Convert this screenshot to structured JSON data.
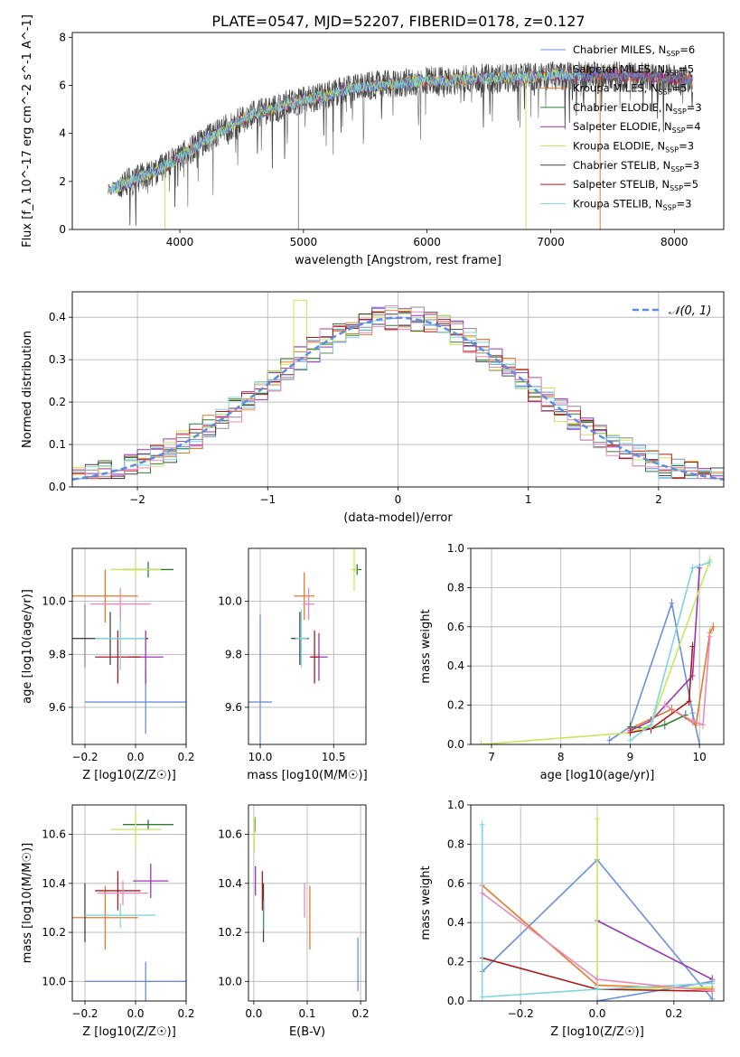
{
  "figure_title": "PLATE=0547, MJD=52207, FIBERID=0178, z=0.127",
  "palette": {
    "Chabrier MILES": "#6a8fdc",
    "Salpeter MILES": "#8a8a8a",
    "Kroupa MILES": "#e8782a",
    "Chabrier ELODIE": "#2e7d32",
    "Salpeter ELODIE": "#9b35b5",
    "Kroupa ELODIE": "#c8e65a",
    "Chabrier STELIB": "#444444",
    "Salpeter STELIB": "#b01818",
    "Kroupa STELIB": "#7fd6dc",
    "normal": "#5b8ee0",
    "pink": "#e88ab8"
  },
  "chart_data": [
    {
      "id": "spectrum",
      "type": "line",
      "xlabel": "wavelength [Angstrom, rest frame]",
      "ylabel": "Flux [f_λ 10^-17 erg cm^-2 s^-1 A^-1]",
      "xlim": [
        3130,
        8400
      ],
      "ylim": [
        0,
        8.2
      ],
      "xticks": [
        4000,
        5000,
        6000,
        7000,
        8000
      ],
      "yticks": [
        0,
        2,
        4,
        6,
        8
      ],
      "legend_position": "top-right",
      "legend": [
        {
          "model": "Chabrier MILES",
          "n": "6"
        },
        {
          "model": "Salpeter MILES",
          "n": "5"
        },
        {
          "model": "Kroupa MILES",
          "n": "5"
        },
        {
          "model": "Chabrier ELODIE",
          "n": "3"
        },
        {
          "model": "Salpeter ELODIE",
          "n": "4"
        },
        {
          "model": "Kroupa ELODIE",
          "n": "3"
        },
        {
          "model": "Chabrier STELIB",
          "n": "3"
        },
        {
          "model": "Salpeter STELIB",
          "n": "5"
        },
        {
          "model": "Kroupa STELIB",
          "n": "3"
        }
      ],
      "continuum": {
        "x": [
          3400,
          3600,
          3800,
          4000,
          4200,
          4400,
          4600,
          4800,
          5000,
          5200,
          5400,
          5600,
          5800,
          6000,
          6200,
          6400,
          6600,
          6800,
          7000,
          7200,
          7400,
          7600,
          7800,
          8000,
          8150
        ],
        "y": [
          1.6,
          2.0,
          2.4,
          3.0,
          3.7,
          4.3,
          4.8,
          5.1,
          5.4,
          5.6,
          5.9,
          6.0,
          6.1,
          6.2,
          6.2,
          6.3,
          6.3,
          6.35,
          6.4,
          6.4,
          6.45,
          6.4,
          6.35,
          6.3,
          6.2
        ]
      }
    },
    {
      "id": "residuals",
      "type": "line",
      "xlabel": "(data-model)/error",
      "ylabel": "Normed distribution",
      "xlim": [
        -2.5,
        2.5
      ],
      "ylim": [
        0,
        0.46
      ],
      "xticks": [
        -2,
        -1,
        0,
        1,
        2
      ],
      "yticks": [
        0.0,
        0.1,
        0.2,
        0.3,
        0.4
      ],
      "grid": true,
      "legend_label": "𝒩(0, 1)",
      "legend_position": "top-right",
      "normal_curve": {
        "mean": 0,
        "sigma": 1
      }
    },
    {
      "id": "z-age",
      "type": "scatter",
      "xlabel": "Z [log10(Z/Z☉)]",
      "ylabel": "age [log10(age/yr)]",
      "xlim": [
        -0.25,
        0.2
      ],
      "ylim": [
        9.46,
        10.2
      ],
      "xticks": [
        -0.2,
        0.0,
        0.2
      ],
      "yticks": [
        9.6,
        9.8,
        10.0
      ],
      "grid": true,
      "points": [
        {
          "model": "Chabrier MILES",
          "x": 0.04,
          "y": 9.62,
          "xerr": 0.24,
          "yerr": 0.12
        },
        {
          "model": "Salpeter MILES",
          "x": -0.2,
          "y": 9.87,
          "xerr": 0.0,
          "yerr": 0.12
        },
        {
          "model": "Kroupa MILES",
          "x": -0.12,
          "y": 10.02,
          "xerr": 0.13,
          "yerr": 0.1
        },
        {
          "model": "Chabrier ELODIE",
          "x": 0.05,
          "y": 10.12,
          "xerr": 0.1,
          "yerr": 0.03
        },
        {
          "model": "Salpeter ELODIE",
          "x": 0.04,
          "y": 9.79,
          "xerr": 0.07,
          "yerr": 0.1
        },
        {
          "model": "Kroupa ELODIE",
          "x": 0.0,
          "y": 10.12,
          "xerr": 0.1,
          "yerr": 0.03
        },
        {
          "model": "Chabrier STELIB",
          "x": -0.1,
          "y": 9.86,
          "xerr": 0.15,
          "yerr": 0.1
        },
        {
          "model": "Salpeter STELIB",
          "x": -0.07,
          "y": 9.79,
          "xerr": 0.09,
          "yerr": 0.1
        },
        {
          "model": "Kroupa STELIB",
          "x": -0.06,
          "y": 9.86,
          "xerr": 0.1,
          "yerr": 0.12
        },
        {
          "model": "pink",
          "x": -0.06,
          "y": 9.99,
          "xerr": 0.12,
          "yerr": 0.06
        }
      ]
    },
    {
      "id": "mass-age",
      "type": "scatter",
      "xlabel": "mass [log10(M/M☉)]",
      "ylabel": "",
      "xlim": [
        9.92,
        10.72
      ],
      "ylim": [
        9.46,
        10.2
      ],
      "xticks": [
        10.0,
        10.5
      ],
      "yticks": [
        9.6,
        9.8,
        10.0
      ],
      "grid": true,
      "points": [
        {
          "model": "Chabrier MILES",
          "x": 10.0,
          "y": 9.62,
          "xerr": 0.08,
          "yerr": 0.33
        },
        {
          "model": "Kroupa MILES",
          "x": 10.3,
          "y": 10.02,
          "xerr": 0.07,
          "yerr": 0.09
        },
        {
          "model": "Chabrier ELODIE",
          "x": 10.66,
          "y": 10.12,
          "xerr": 0.03,
          "yerr": 0.02
        },
        {
          "model": "Salpeter ELODIE",
          "x": 10.4,
          "y": 9.79,
          "xerr": 0.06,
          "yerr": 0.09
        },
        {
          "model": "Kroupa ELODIE",
          "x": 10.64,
          "y": 10.12,
          "xerr": 0.02,
          "yerr": 0.08
        },
        {
          "model": "Chabrier STELIB",
          "x": 10.27,
          "y": 9.86,
          "xerr": 0.06,
          "yerr": 0.1
        },
        {
          "model": "Salpeter STELIB",
          "x": 10.37,
          "y": 9.79,
          "xerr": 0.03,
          "yerr": 0.1
        },
        {
          "model": "Kroupa STELIB",
          "x": 10.28,
          "y": 9.86,
          "xerr": 0.04,
          "yerr": 0.11
        },
        {
          "model": "pink",
          "x": 10.33,
          "y": 9.99,
          "xerr": 0.04,
          "yerr": 0.06
        }
      ]
    },
    {
      "id": "age-weight",
      "type": "line",
      "xlabel": "age [log10(age/yr)]",
      "ylabel": "mass weight",
      "xlim": [
        6.7,
        10.35
      ],
      "ylim": [
        0,
        1.0
      ],
      "xticks": [
        7,
        8,
        9,
        10
      ],
      "yticks": [
        0.0,
        0.2,
        0.4,
        0.6,
        0.8,
        1.0
      ],
      "grid": true,
      "series": [
        {
          "model": "Chabrier MILES",
          "x": [
            8.7,
            9.0,
            9.6,
            9.9,
            10.0
          ],
          "y": [
            0.02,
            0.09,
            0.72,
            0.16,
            0.0
          ]
        },
        {
          "model": "Kroupa MILES",
          "x": [
            9.0,
            9.6,
            9.95,
            10.15,
            10.2
          ],
          "y": [
            0.08,
            0.18,
            0.1,
            0.57,
            0.6
          ]
        },
        {
          "model": "Chabrier ELODIE",
          "x": [
            9.0,
            9.3,
            9.5,
            9.8
          ],
          "y": [
            0.09,
            0.08,
            0.1,
            0.15
          ]
        },
        {
          "model": "Salpeter ELODIE",
          "x": [
            9.0,
            9.3,
            9.9,
            10.0
          ],
          "y": [
            0.07,
            0.12,
            0.35,
            0.9
          ]
        },
        {
          "model": "Kroupa ELODIE",
          "x": [
            6.85,
            9.0,
            9.3,
            10.15
          ],
          "y": [
            0.0,
            0.06,
            0.1,
            0.94
          ]
        },
        {
          "model": "Salpeter STELIB",
          "x": [
            9.0,
            9.3,
            9.85,
            9.9
          ],
          "y": [
            0.06,
            0.08,
            0.22,
            0.5
          ]
        },
        {
          "model": "Kroupa STELIB",
          "x": [
            9.0,
            9.3,
            9.9,
            10.15
          ],
          "y": [
            0.02,
            0.1,
            0.9,
            0.93
          ]
        },
        {
          "model": "pink",
          "x": [
            9.5,
            9.9,
            10.05,
            10.15
          ],
          "y": [
            0.2,
            0.12,
            0.1,
            0.55
          ]
        }
      ]
    },
    {
      "id": "z-mass",
      "type": "scatter",
      "xlabel": "Z [log10(Z/Z☉)]",
      "ylabel": "mass [log10(M/M☉)]",
      "xlim": [
        -0.25,
        0.2
      ],
      "ylim": [
        9.92,
        10.72
      ],
      "xticks": [
        -0.2,
        0.0,
        0.2
      ],
      "yticks": [
        10.0,
        10.2,
        10.4,
        10.6
      ],
      "grid": true,
      "points": [
        {
          "model": "Chabrier MILES",
          "x": 0.04,
          "y": 10.0,
          "xerr": 0.24,
          "yerr": 0.08
        },
        {
          "model": "Kroupa MILES",
          "x": -0.12,
          "y": 10.26,
          "xerr": 0.13,
          "yerr": 0.13
        },
        {
          "model": "Chabrier ELODIE",
          "x": 0.05,
          "y": 10.64,
          "xerr": 0.1,
          "yerr": 0.02
        },
        {
          "model": "Salpeter ELODIE",
          "x": 0.06,
          "y": 10.41,
          "xerr": 0.07,
          "yerr": 0.07
        },
        {
          "model": "Kroupa ELODIE",
          "x": 0.0,
          "y": 10.62,
          "xerr": 0.1,
          "yerr": 0.07
        },
        {
          "model": "Chabrier STELIB",
          "x": -0.2,
          "y": 10.28,
          "xerr": 0.0,
          "yerr": 0.12
        },
        {
          "model": "Salpeter STELIB",
          "x": -0.07,
          "y": 10.37,
          "xerr": 0.09,
          "yerr": 0.08
        },
        {
          "model": "Kroupa STELIB",
          "x": -0.06,
          "y": 10.27,
          "xerr": 0.14,
          "yerr": 0.05
        },
        {
          "model": "pink",
          "x": -0.05,
          "y": 10.36,
          "xerr": 0.1,
          "yerr": 0.05
        }
      ]
    },
    {
      "id": "ebv-mass",
      "type": "scatter",
      "xlabel": "E(B-V)",
      "ylabel": "",
      "xlim": [
        -0.01,
        0.21
      ],
      "ylim": [
        9.92,
        10.72
      ],
      "xticks": [
        0.0,
        0.1,
        0.2
      ],
      "yticks": [
        10.0,
        10.2,
        10.4,
        10.6
      ],
      "grid": true,
      "points": [
        {
          "model": "Chabrier MILES",
          "x": 0.195,
          "y": 10.07,
          "xerr": 0.0,
          "yerr": 0.11
        },
        {
          "model": "Kroupa MILES",
          "x": 0.105,
          "y": 10.26,
          "xerr": 0.0,
          "yerr": 0.13
        },
        {
          "model": "Chabrier ELODIE",
          "x": 0.002,
          "y": 10.64,
          "xerr": 0.0,
          "yerr": 0.03
        },
        {
          "model": "Salpeter ELODIE",
          "x": 0.003,
          "y": 10.41,
          "xerr": 0.0,
          "yerr": 0.06
        },
        {
          "model": "Kroupa ELODIE",
          "x": 0.001,
          "y": 10.6,
          "xerr": 0.0,
          "yerr": 0.07
        },
        {
          "model": "Chabrier STELIB",
          "x": 0.018,
          "y": 10.28,
          "xerr": 0.0,
          "yerr": 0.12
        },
        {
          "model": "Salpeter STELIB",
          "x": 0.016,
          "y": 10.37,
          "xerr": 0.0,
          "yerr": 0.08
        },
        {
          "model": "Kroupa STELIB",
          "x": 0.019,
          "y": 10.27,
          "xerr": 0.0,
          "yerr": 0.06
        },
        {
          "model": "pink",
          "x": 0.095,
          "y": 10.33,
          "xerr": 0.0,
          "yerr": 0.07
        }
      ]
    },
    {
      "id": "z-weight",
      "type": "line",
      "xlabel": "Z [log10(Z/Z☉)]",
      "ylabel": "mass weight",
      "xlim": [
        -0.33,
        0.33
      ],
      "ylim": [
        0,
        1.0
      ],
      "xticks": [
        -0.2,
        0.0,
        0.2
      ],
      "yticks": [
        0.0,
        0.2,
        0.4,
        0.6,
        0.8,
        1.0
      ],
      "grid": true,
      "series": [
        {
          "model": "Chabrier MILES",
          "x": [
            -0.3,
            0.0,
            0.3
          ],
          "y": [
            0.15,
            0.72,
            0.01
          ]
        },
        {
          "model": "Chabrier MILES",
          "x": [
            0.0,
            0.3
          ],
          "y": [
            0.0,
            0.1
          ]
        },
        {
          "model": "Kroupa MILES",
          "x": [
            -0.3,
            0.0,
            0.3
          ],
          "y": [
            0.59,
            0.08,
            0.06
          ]
        },
        {
          "model": "Salpeter ELODIE",
          "x": [
            0.0,
            0.3
          ],
          "y": [
            0.41,
            0.11
          ]
        },
        {
          "model": "Kroupa ELODIE",
          "x": [
            0.0,
            0.0,
            0.3
          ],
          "y": [
            0.93,
            0.06,
            0.07
          ]
        },
        {
          "model": "Salpeter STELIB",
          "x": [
            -0.3,
            0.0,
            0.3
          ],
          "y": [
            0.22,
            0.06,
            0.05
          ]
        },
        {
          "model": "Kroupa STELIB",
          "x": [
            -0.3,
            -0.3,
            0.0,
            0.3
          ],
          "y": [
            0.9,
            0.02,
            0.06,
            0.09
          ]
        },
        {
          "model": "pink",
          "x": [
            -0.3,
            0.0,
            0.3
          ],
          "y": [
            0.55,
            0.11,
            0.05
          ]
        }
      ]
    }
  ]
}
